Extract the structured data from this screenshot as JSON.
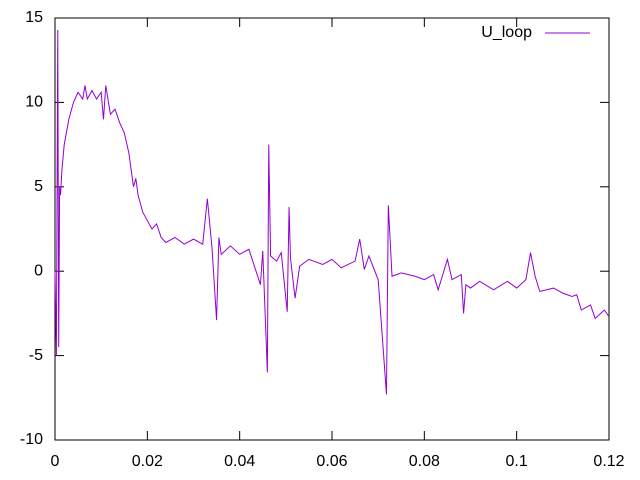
{
  "chart_data": {
    "type": "line",
    "x": [
      0,
      0.0003,
      0.0006,
      0.0008,
      0.001,
      0.0012,
      0.0015,
      0.002,
      0.003,
      0.004,
      0.005,
      0.006,
      0.0065,
      0.007,
      0.008,
      0.009,
      0.01,
      0.0105,
      0.011,
      0.012,
      0.013,
      0.014,
      0.015,
      0.016,
      0.017,
      0.0175,
      0.018,
      0.019,
      0.02,
      0.021,
      0.022,
      0.023,
      0.024,
      0.026,
      0.028,
      0.03,
      0.032,
      0.033,
      0.034,
      0.035,
      0.0355,
      0.036,
      0.038,
      0.04,
      0.042,
      0.0445,
      0.045,
      0.046,
      0.0463,
      0.0467,
      0.048,
      0.049,
      0.0503,
      0.0507,
      0.051,
      0.052,
      0.053,
      0.055,
      0.058,
      0.06,
      0.062,
      0.065,
      0.066,
      0.067,
      0.068,
      0.07,
      0.0718,
      0.0722,
      0.073,
      0.075,
      0.078,
      0.08,
      0.082,
      0.083,
      0.085,
      0.086,
      0.088,
      0.0885,
      0.089,
      0.09,
      0.092,
      0.095,
      0.098,
      0.1,
      0.102,
      0.103,
      0.104,
      0.105,
      0.108,
      0.11,
      0.112,
      0.113,
      0.114,
      0.116,
      0.117,
      0.119,
      0.12
    ],
    "series": [
      {
        "name": "U_loop",
        "color": "#9400d3",
        "values": [
          0,
          -5,
          14.3,
          -4.5,
          5,
          4.5,
          6,
          7.5,
          9,
          10,
          10.6,
          10.2,
          11,
          10.2,
          10.7,
          10.2,
          10.6,
          9,
          11,
          9.3,
          9.6,
          8.8,
          8.2,
          7,
          5,
          5.5,
          4.5,
          3.5,
          3,
          2.5,
          2.8,
          2,
          1.7,
          2,
          1.6,
          1.9,
          1.6,
          4.3,
          1.4,
          -2.9,
          2,
          1,
          1.5,
          1,
          1.3,
          -0.8,
          1.2,
          -6,
          7.5,
          0.9,
          0.6,
          1.1,
          -2.4,
          3.8,
          0.8,
          -1.6,
          0.3,
          0.7,
          0.4,
          0.7,
          0.2,
          0.6,
          1.9,
          0.1,
          0.9,
          -0.5,
          -7.3,
          3.9,
          -0.3,
          -0.1,
          -0.3,
          -0.5,
          -0.2,
          -1.1,
          0.7,
          -0.5,
          -0.2,
          -2.5,
          -0.8,
          -1,
          -0.6,
          -1.1,
          -0.6,
          -1,
          -0.5,
          1.1,
          -0.3,
          -1.2,
          -1,
          -1.3,
          -1.5,
          -1.4,
          -2.3,
          -2,
          -2.8,
          -2.3,
          -2.7
        ]
      }
    ],
    "xlim": [
      0,
      0.12
    ],
    "xticks": [
      0,
      0.02,
      0.04,
      0.06,
      0.08,
      0.1,
      0.12
    ],
    "ylim": [
      -10,
      15
    ],
    "yticks": [
      -10,
      -5,
      0,
      5,
      10,
      15
    ],
    "legend": "top-right"
  }
}
